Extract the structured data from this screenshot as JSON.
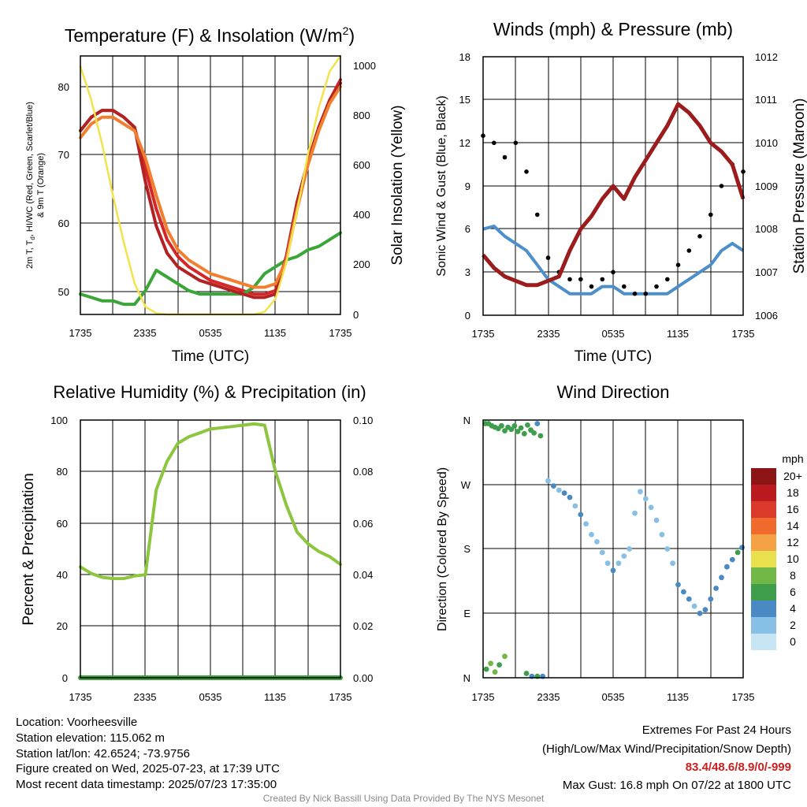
{
  "x_ticks": [
    "1735",
    "2335",
    "0535",
    "1135",
    "1735"
  ],
  "colors": {
    "t2m": "#d62728",
    "td": "#3aa63a",
    "hiwc": "#b22222",
    "t9m": "#f08030",
    "solar": "#f3e24a",
    "wind": "#4c8fca",
    "gust": "#000000",
    "pressure": "#9b1c1c",
    "rh": "#8cc63f",
    "precip": "#3f9f3f"
  },
  "charts": [
    {
      "title": "Temperature (F) & Insolation (W/m",
      "title_sup": "2",
      "title_tail": ")",
      "xlabel": "Time (UTC)",
      "ylabel_left": [
        "2m T, T",
        "d",
        ", HI/WC (Red, Green, Scarlet/Blue)",
        "& 9m T (Orange)"
      ],
      "ylabel_right": "Solar Insolation (Yellow)",
      "left_ticks": [
        "50",
        "60",
        "70",
        "80"
      ],
      "right_ticks": [
        "0",
        "200",
        "400",
        "600",
        "800",
        "1000"
      ]
    },
    {
      "title": "Winds (mph) & Pressure (mb)",
      "xlabel": "Time (UTC)",
      "ylabel_left": "Sonic Wind & Gust (Blue, Black)",
      "ylabel_right": "Station Pressure (Maroon)",
      "left_ticks": [
        "0",
        "3",
        "6",
        "9",
        "12",
        "15",
        "18"
      ],
      "right_ticks": [
        "1006",
        "1007",
        "1008",
        "1009",
        "1010",
        "1011",
        "1012"
      ]
    },
    {
      "title": "Relative Humidity (%) & Precipitation (in)",
      "ylabel_left": "Percent & Precipitation",
      "left_ticks": [
        "0",
        "20",
        "40",
        "60",
        "80",
        "100"
      ],
      "right_ticks": [
        "0.00",
        "0.02",
        "0.04",
        "0.06",
        "0.08",
        "0.10"
      ]
    },
    {
      "title": "Wind Direction",
      "ylabel_left": "Direction (Colored By Speed)",
      "left_ticks": [
        "N",
        "E",
        "S",
        "W",
        "N"
      ],
      "legend_title": "mph",
      "legend_labels": [
        "0",
        "2",
        "4",
        "6",
        "8",
        "10",
        "12",
        "14",
        "16",
        "18",
        "20+"
      ],
      "legend_colors": [
        "#c6e6f6",
        "#87bfe5",
        "#4a8ac4",
        "#3e9e4b",
        "#72b846",
        "#e8e04c",
        "#f5a247",
        "#ef6a2b",
        "#db3a2a",
        "#bb1b1e",
        "#8e1515"
      ]
    }
  ],
  "chart_data": [
    {
      "type": "line",
      "title": "Temperature (F) & Insolation (W/m2)",
      "xlabel": "Time (UTC)",
      "x": [
        0,
        1,
        2,
        3,
        4,
        5,
        6,
        7,
        8,
        9,
        10,
        11,
        12,
        13,
        14,
        15,
        16,
        17,
        18,
        19,
        20,
        21,
        22,
        23,
        24
      ],
      "x_tick_labels": [
        "1735",
        "2335",
        "0535",
        "1135",
        "1735"
      ],
      "ylim_left": [
        46.5,
        84.5
      ],
      "ylim_right": [
        0,
        1000
      ],
      "series": [
        {
          "name": "2m T",
          "axis": "left",
          "values": [
            73.5,
            75.5,
            76.5,
            76.5,
            75.5,
            74,
            68,
            62,
            57.5,
            55,
            53.5,
            52.5,
            51.5,
            51,
            50.5,
            50,
            49.5,
            49.5,
            50,
            55,
            63,
            69,
            74,
            78,
            81
          ]
        },
        {
          "name": "Td",
          "axis": "left",
          "values": [
            49.5,
            49,
            48.5,
            48.5,
            48,
            48,
            50,
            53,
            52,
            51,
            50,
            49.5,
            49.5,
            49.5,
            49.5,
            49.5,
            50.5,
            52.5,
            53.5,
            54.5,
            55,
            56,
            56.5,
            57.5,
            58.5
          ]
        },
        {
          "name": "HI/WC",
          "axis": "left",
          "values": [
            73.5,
            75.5,
            76.5,
            76.5,
            75.5,
            74,
            66,
            59.5,
            55.5,
            53.5,
            52.5,
            51.5,
            51,
            50.5,
            50,
            49.5,
            49,
            49,
            49.5,
            55,
            63,
            69,
            74,
            78,
            80.5
          ]
        },
        {
          "name": "9m T",
          "axis": "left",
          "values": [
            72.5,
            74.5,
            75.5,
            75.5,
            74.5,
            73.5,
            69.5,
            64,
            59,
            56,
            54.5,
            53.5,
            52.5,
            52,
            51.5,
            51,
            50.5,
            50.5,
            51,
            54.5,
            62,
            68.5,
            73.5,
            77.5,
            80
          ]
        },
        {
          "name": "Solar",
          "axis": "right",
          "values": [
            960,
            830,
            660,
            460,
            280,
            120,
            30,
            5,
            0,
            0,
            0,
            0,
            0,
            0,
            0,
            0,
            0,
            10,
            60,
            200,
            400,
            620,
            800,
            940,
            1000
          ]
        }
      ]
    },
    {
      "type": "line",
      "title": "Winds (mph) & Pressure (mb)",
      "xlabel": "Time (UTC)",
      "x": [
        0,
        1,
        2,
        3,
        4,
        5,
        6,
        7,
        8,
        9,
        10,
        11,
        12,
        13,
        14,
        15,
        16,
        17,
        18,
        19,
        20,
        21,
        22,
        23,
        24
      ],
      "x_tick_labels": [
        "1735",
        "2335",
        "0535",
        "1135",
        "1735"
      ],
      "ylim_left": [
        0,
        18
      ],
      "ylim_right": [
        1006,
        1012
      ],
      "series": [
        {
          "name": "Sonic Wind",
          "axis": "left",
          "values": [
            6,
            6.2,
            5.5,
            5,
            4.5,
            3.5,
            2.5,
            2,
            1.5,
            1.5,
            1.5,
            2,
            2,
            1.5,
            1.5,
            1.5,
            1.5,
            1.5,
            2,
            2.5,
            3,
            3.5,
            4.5,
            5,
            4.5
          ]
        },
        {
          "name": "Gust",
          "axis": "left",
          "values": [
            12.5,
            12,
            11,
            12,
            10,
            7,
            4,
            3,
            2.5,
            2.5,
            2,
            2.5,
            3,
            2,
            1.5,
            1.5,
            2,
            2.5,
            3.5,
            4.5,
            5.5,
            7,
            9,
            10.5,
            10
          ]
        },
        {
          "name": "Pressure",
          "axis": "right",
          "values": [
            1007.4,
            1007.1,
            1006.9,
            1006.8,
            1006.7,
            1006.7,
            1006.8,
            1006.9,
            1007.5,
            1008,
            1008.3,
            1008.7,
            1009,
            1008.7,
            1009.2,
            1009.6,
            1010,
            1010.4,
            1010.9,
            1010.7,
            1010.4,
            1010,
            1009.8,
            1009.5,
            1008.7
          ]
        }
      ]
    },
    {
      "type": "line",
      "title": "Relative Humidity (%) & Precipitation (in)",
      "x": [
        0,
        1,
        2,
        3,
        4,
        5,
        6,
        7,
        8,
        9,
        10,
        11,
        12,
        13,
        14,
        15,
        16,
        17,
        18,
        19,
        20,
        21,
        22,
        23,
        24
      ],
      "x_tick_labels": [
        "1735",
        "2335",
        "0535",
        "1135",
        "1735"
      ],
      "ylim_left": [
        0,
        100
      ],
      "ylim_right": [
        0,
        0.1
      ],
      "series": [
        {
          "name": "RH",
          "axis": "left",
          "values": [
            43,
            40.5,
            39,
            38.5,
            38.5,
            39.5,
            40,
            73,
            84,
            91,
            93.5,
            95,
            96.5,
            97,
            97.5,
            98,
            98.5,
            98,
            80,
            67,
            56.5,
            52,
            49,
            47,
            44
          ]
        },
        {
          "name": "Precipitation",
          "axis": "right",
          "values": [
            0,
            0,
            0,
            0,
            0,
            0,
            0,
            0,
            0,
            0,
            0,
            0,
            0,
            0,
            0,
            0,
            0,
            0,
            0,
            0,
            0,
            0,
            0,
            0,
            0
          ]
        }
      ]
    },
    {
      "type": "scatter",
      "title": "Wind Direction",
      "x_tick_labels": [
        "1735",
        "2335",
        "0535",
        "1135",
        "1735"
      ],
      "ylim": [
        0,
        360
      ],
      "y_tick_labels": [
        "N",
        "E",
        "S",
        "W",
        "N"
      ],
      "points": [
        [
          0.2,
          355,
          6
        ],
        [
          0.5,
          355,
          6
        ],
        [
          0.8,
          352,
          6
        ],
        [
          1.1,
          350,
          6
        ],
        [
          1.4,
          348,
          6
        ],
        [
          1.7,
          352,
          5
        ],
        [
          2,
          345,
          6
        ],
        [
          2.3,
          350,
          6
        ],
        [
          2.6,
          347,
          6
        ],
        [
          2.9,
          352,
          5
        ],
        [
          3.2,
          344,
          6
        ],
        [
          3.5,
          349,
          6
        ],
        [
          3.8,
          341,
          6
        ],
        [
          4.1,
          353,
          5
        ],
        [
          4.4,
          346,
          6
        ],
        [
          4.7,
          342,
          5
        ],
        [
          5,
          355,
          4
        ],
        [
          5.3,
          338,
          6
        ],
        [
          0.3,
          12,
          6
        ],
        [
          0.7,
          20,
          8
        ],
        [
          1.1,
          8,
          7
        ],
        [
          1.5,
          18,
          6
        ],
        [
          2,
          30,
          8
        ],
        [
          4,
          6,
          6
        ],
        [
          4.5,
          2,
          4
        ],
        [
          5,
          2,
          6
        ],
        [
          5.5,
          2,
          4
        ],
        [
          6,
          275,
          2
        ],
        [
          6.5,
          268,
          3
        ],
        [
          7,
          262,
          2
        ],
        [
          7.5,
          258,
          4
        ],
        [
          8,
          252,
          3
        ],
        [
          8.5,
          240,
          2
        ],
        [
          9,
          228,
          3
        ],
        [
          9.5,
          215,
          1
        ],
        [
          10,
          200,
          2
        ],
        [
          10.5,
          190,
          2
        ],
        [
          11,
          175,
          1
        ],
        [
          11.5,
          160,
          2
        ],
        [
          12,
          150,
          3
        ],
        [
          12.5,
          160,
          1
        ],
        [
          13,
          170,
          2
        ],
        [
          13.5,
          180,
          1
        ],
        [
          14,
          230,
          2
        ],
        [
          14.5,
          260,
          1
        ],
        [
          15,
          250,
          2
        ],
        [
          15.5,
          238,
          1
        ],
        [
          16,
          220,
          2
        ],
        [
          16.5,
          200,
          1
        ],
        [
          17,
          180,
          2
        ],
        [
          17.5,
          160,
          2
        ],
        [
          18,
          130,
          3
        ],
        [
          18.5,
          120,
          4
        ],
        [
          19,
          110,
          3
        ],
        [
          19.5,
          100,
          2
        ],
        [
          20,
          90,
          4
        ],
        [
          20.5,
          95,
          3
        ],
        [
          21,
          110,
          4
        ],
        [
          21.5,
          125,
          4
        ],
        [
          22,
          140,
          3
        ],
        [
          22.5,
          155,
          4
        ],
        [
          23,
          165,
          4
        ],
        [
          23.5,
          175,
          5
        ],
        [
          23.9,
          182,
          4
        ]
      ]
    }
  ],
  "info": {
    "location": "Location: Voorheesville",
    "elevation": "Station elevation: 115.062 m",
    "latlon": "Station lat/lon: 42.6524; -73.9756",
    "created": "Figure created on Wed, 2025-07-23, at 17:39 UTC",
    "recent": "Most recent data timestamp: 2025/07/23 17:35:00"
  },
  "extremes": {
    "title": "Extremes For Past 24 Hours",
    "subtitle": "(High/Low/Max Wind/Precipitation/Snow Depth)",
    "values": "83.4/48.6/8.9/0/-999",
    "gust": "Max Gust: 16.8 mph On 07/22 at 1800 UTC"
  },
  "credit": "Created By Nick Bassill Using Data Provided By The NYS Mesonet"
}
